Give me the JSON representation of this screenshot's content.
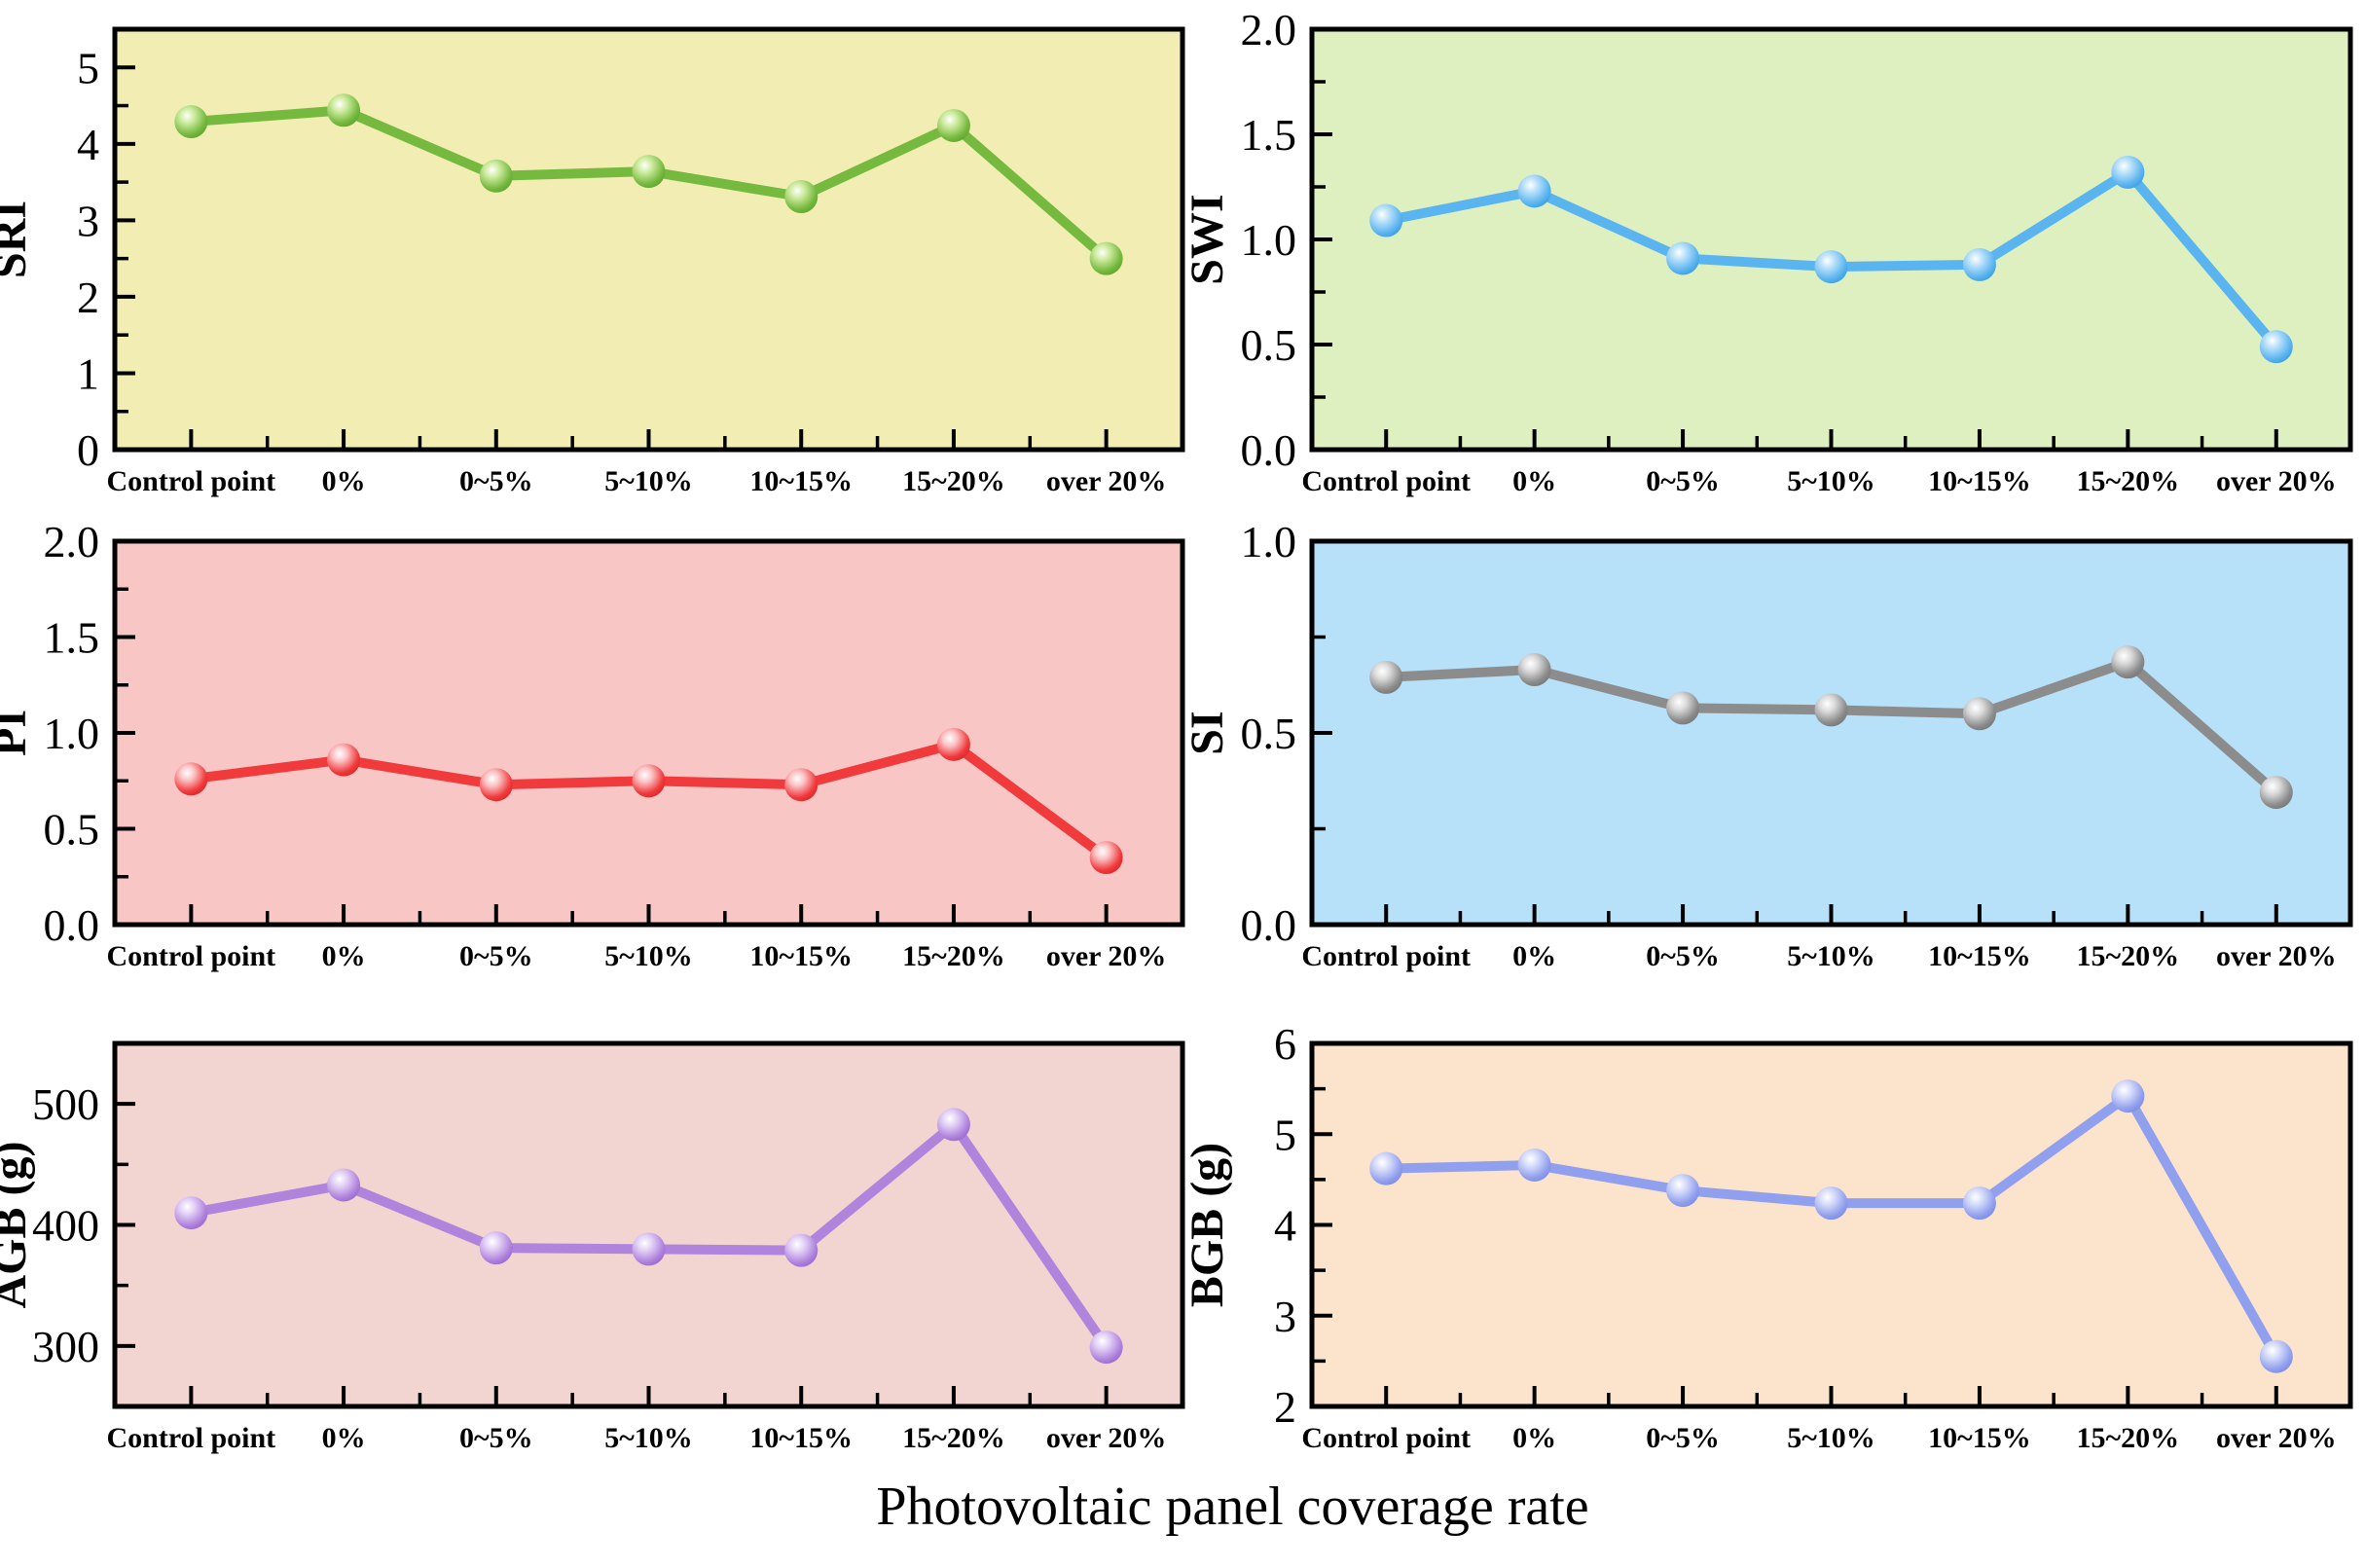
{
  "figure": {
    "xlabel": "Photovoltaic panel coverage rate",
    "background_color": "#ffffff",
    "categories": [
      "Control point",
      "0%",
      "0~5%",
      "5~10%",
      "10~15%",
      "15~20%",
      "over 20%"
    ]
  },
  "chart_data": [
    {
      "id": "sri",
      "type": "line",
      "ylabel": "SRI",
      "categories": [
        "Control point",
        "0%",
        "0~5%",
        "5~10%",
        "10~15%",
        "15~20%",
        "over 20%"
      ],
      "values": [
        4.29,
        4.44,
        3.58,
        3.64,
        3.31,
        4.24,
        2.5
      ],
      "ylim": [
        0,
        5.5
      ],
      "ytick_values": [
        0,
        1,
        2,
        3,
        4,
        5
      ],
      "ytick_labels": [
        "0",
        "1",
        "2",
        "3",
        "4",
        "5"
      ],
      "minor_y_step": 0.5,
      "grid": false,
      "bg_color": "#f1edb3",
      "line_color": "#76b93f",
      "marker_tint": "#cdeb9e",
      "marker_dark": "#5da32c"
    },
    {
      "id": "swi",
      "type": "line",
      "ylabel": "SWI",
      "categories": [
        "Control point",
        "0%",
        "0~5%",
        "5~10%",
        "10~15%",
        "15~20%",
        "over 20%"
      ],
      "values": [
        1.09,
        1.23,
        0.91,
        0.87,
        0.88,
        1.32,
        0.49
      ],
      "ylim": [
        0,
        2.0
      ],
      "ytick_values": [
        0,
        0.5,
        1.0,
        1.5,
        2.0
      ],
      "ytick_labels": [
        "0.0",
        "0.5",
        "1.0",
        "1.5",
        "2.0"
      ],
      "minor_y_step": 0.25,
      "grid": false,
      "bg_color": "#def0c0",
      "line_color": "#5ab4f0",
      "marker_tint": "#b8e0fa",
      "marker_dark": "#3b9bdd"
    },
    {
      "id": "pi",
      "type": "line",
      "ylabel": "PI",
      "categories": [
        "Control point",
        "0%",
        "0~5%",
        "5~10%",
        "10~15%",
        "15~20%",
        "over 20%"
      ],
      "values": [
        0.76,
        0.86,
        0.73,
        0.75,
        0.73,
        0.94,
        0.35
      ],
      "ylim": [
        0,
        2.0
      ],
      "ytick_values": [
        0,
        0.5,
        1.0,
        1.5,
        2.0
      ],
      "ytick_labels": [
        "0.0",
        "0.5",
        "1.0",
        "1.5",
        "2.0"
      ],
      "minor_y_step": 0.25,
      "grid": false,
      "bg_color": "#f9c6c6",
      "line_color": "#f03a3c",
      "marker_tint": "#fbc2c4",
      "marker_dark": "#d92527"
    },
    {
      "id": "si",
      "type": "line",
      "ylabel": "SI",
      "categories": [
        "Control point",
        "0%",
        "0~5%",
        "5~10%",
        "10~15%",
        "15~20%",
        "over 20%"
      ],
      "values": [
        0.645,
        0.665,
        0.565,
        0.56,
        0.55,
        0.685,
        0.345
      ],
      "ylim": [
        0,
        1.0
      ],
      "ytick_values": [
        0,
        0.5,
        1.0
      ],
      "ytick_labels": [
        "0.0",
        "0.5",
        "1.0"
      ],
      "minor_y_step": 0.25,
      "grid": false,
      "bg_color": "#b6e1f8",
      "line_color": "#8c8c8c",
      "marker_tint": "#dcdcdc",
      "marker_dark": "#757575"
    },
    {
      "id": "agb",
      "type": "line",
      "ylabel": "AGB (g)",
      "categories": [
        "Control point",
        "0%",
        "0~5%",
        "5~10%",
        "10~15%",
        "15~20%",
        "over 20%"
      ],
      "values": [
        410,
        433,
        381,
        380,
        379,
        483,
        299
      ],
      "ylim": [
        250,
        550
      ],
      "ytick_values": [
        300,
        400,
        500
      ],
      "ytick_labels": [
        "300",
        "400",
        "500"
      ],
      "minor_y_step": 50,
      "grid": false,
      "bg_color": "#f2d5d0",
      "line_color": "#b083dd",
      "marker_tint": "#e2d1f6",
      "marker_dark": "#9766cc"
    },
    {
      "id": "bgb",
      "type": "line",
      "ylabel": "BGB (g)",
      "categories": [
        "Control point",
        "0%",
        "0~5%",
        "5~10%",
        "10~15%",
        "15~20%",
        "over 20%"
      ],
      "values": [
        4.62,
        4.66,
        4.38,
        4.24,
        4.24,
        5.42,
        2.55
      ],
      "ylim": [
        2,
        6
      ],
      "ytick_values": [
        2,
        3,
        4,
        5,
        6
      ],
      "ytick_labels": [
        "2",
        "3",
        "4",
        "5",
        "6"
      ],
      "minor_y_step": 0.5,
      "grid": false,
      "bg_color": "#fce3cc",
      "line_color": "#91a0ee",
      "marker_tint": "#d6dcfa",
      "marker_dark": "#7b8ce0"
    }
  ]
}
